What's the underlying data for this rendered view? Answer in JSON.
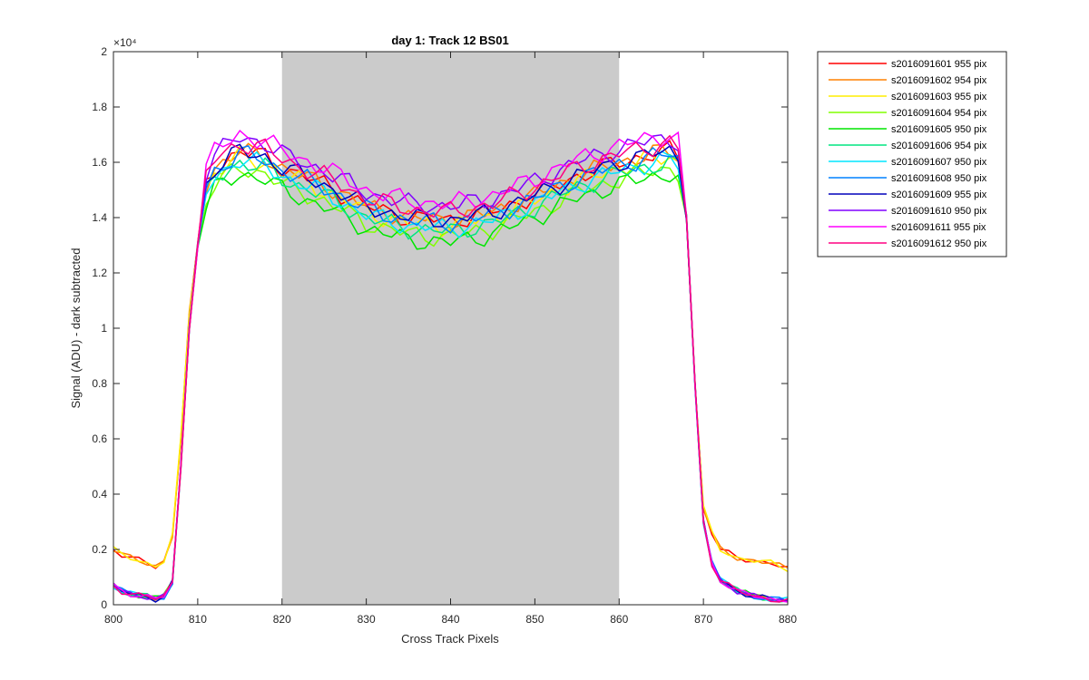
{
  "chart_data": {
    "type": "line",
    "title": "day 1: Track 12  BS01",
    "xlabel": "Cross Track Pixels",
    "ylabel": "Signal (ADU) - dark subtracted",
    "y_exponent_label": "×10⁴",
    "xlim": [
      800,
      880
    ],
    "ylim": [
      0,
      2
    ],
    "xticks": [
      800,
      810,
      820,
      830,
      840,
      850,
      860,
      870,
      880
    ],
    "yticks": [
      0,
      0.2,
      0.4,
      0.6,
      0.8,
      1,
      1.2,
      1.4,
      1.6,
      1.8,
      2
    ],
    "ytick_labels": [
      "0",
      "0.2",
      "0.4",
      "0.6",
      "0.8",
      "1",
      "1.2",
      "1.4",
      "1.6",
      "1.8",
      "2"
    ],
    "shaded_region": {
      "x": [
        820,
        860
      ],
      "color": "#cbcbcb"
    },
    "legend_position": "outside-top-right",
    "grid": false,
    "series": [
      {
        "name": "s2016091601 955 pix",
        "color": "#ff0000",
        "base": "high",
        "offset": 0.0
      },
      {
        "name": "s2016091602 954 pix",
        "color": "#ff8000",
        "base": "high",
        "offset": 0.0
      },
      {
        "name": "s2016091603 955 pix",
        "color": "#ffee00",
        "base": "high",
        "offset": -0.02
      },
      {
        "name": "s2016091604 954 pix",
        "color": "#80ff00",
        "base": "low",
        "offset": -0.06
      },
      {
        "name": "s2016091605 950 pix",
        "color": "#00e600",
        "base": "low",
        "offset": -0.08
      },
      {
        "name": "s2016091606 954 pix",
        "color": "#00e680",
        "base": "low",
        "offset": -0.04
      },
      {
        "name": "s2016091607 950 pix",
        "color": "#00e5ff",
        "base": "low",
        "offset": -0.03
      },
      {
        "name": "s2016091608 950 pix",
        "color": "#0080ff",
        "base": "low",
        "offset": -0.01
      },
      {
        "name": "s2016091609 955 pix",
        "color": "#0000bb",
        "base": "low",
        "offset": 0.0
      },
      {
        "name": "s2016091610 950 pix",
        "color": "#8000ff",
        "base": "low",
        "offset": 0.05
      },
      {
        "name": "s2016091611 955 pix",
        "color": "#ff00ff",
        "base": "low",
        "offset": 0.06
      },
      {
        "name": "s2016091612 950 pix",
        "color": "#ff0080",
        "base": "low",
        "offset": 0.03
      }
    ],
    "profile": {
      "x": [
        800,
        801,
        802,
        803,
        804,
        805,
        806,
        807,
        808,
        809,
        810,
        811,
        812,
        815,
        818,
        820,
        825,
        830,
        835,
        840,
        845,
        850,
        855,
        860,
        864,
        866,
        867,
        868,
        869,
        870,
        871,
        872,
        874,
        876,
        878,
        880
      ],
      "high_edge": [
        0.2,
        0.18,
        0.17,
        0.16,
        0.15,
        0.14,
        0.16,
        0.25,
        0.6,
        1.05,
        1.3,
        1.52,
        1.58,
        1.64,
        1.62,
        1.58,
        1.52,
        1.44,
        1.4,
        1.39,
        1.42,
        1.48,
        1.55,
        1.6,
        1.63,
        1.64,
        1.62,
        1.4,
        0.8,
        0.35,
        0.26,
        0.2,
        0.17,
        0.16,
        0.15,
        0.13
      ],
      "low_edge": [
        0.07,
        0.05,
        0.04,
        0.035,
        0.03,
        0.02,
        0.03,
        0.08,
        0.5,
        1.0,
        1.3,
        1.52,
        1.58,
        1.64,
        1.62,
        1.58,
        1.52,
        1.44,
        1.4,
        1.39,
        1.42,
        1.48,
        1.55,
        1.6,
        1.63,
        1.64,
        1.62,
        1.4,
        0.8,
        0.3,
        0.15,
        0.09,
        0.05,
        0.03,
        0.02,
        0.015
      ]
    }
  }
}
